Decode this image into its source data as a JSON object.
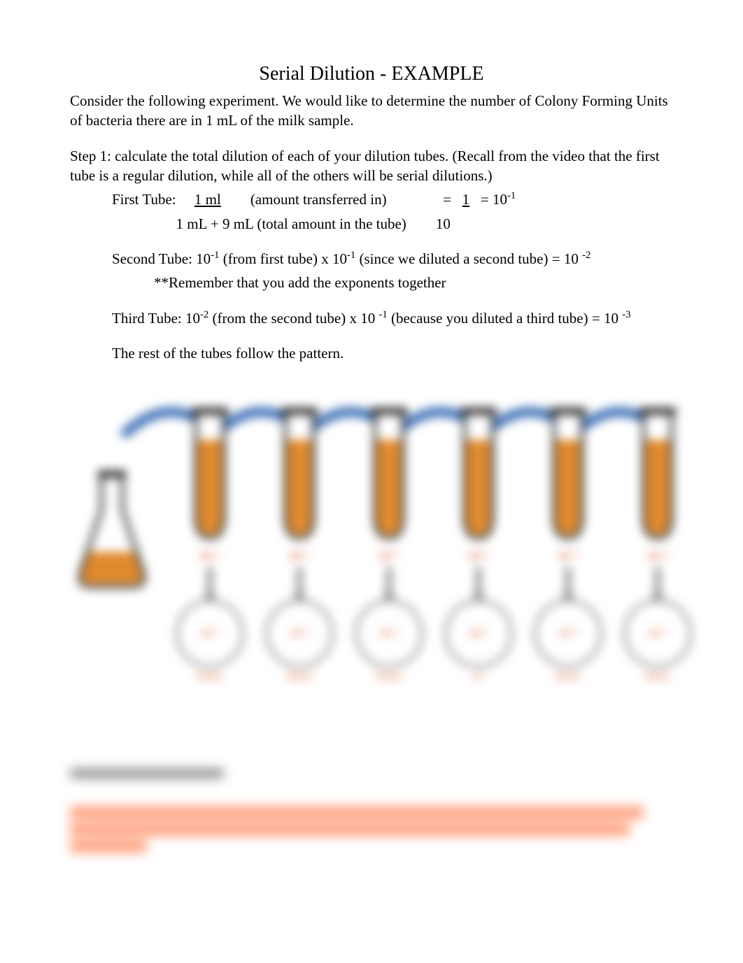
{
  "title": "Serial Dilution - EXAMPLE",
  "intro_p1": "Consider the following experiment. We would like to determine the number of Colony Forming Units of bacteria there are in 1 mL of the milk sample.",
  "step1_heading": "Step 1: calculate the total dilution of each of your dilution tubes. (Recall from the video that the first tube is a regular dilution, while all of the others will be serial dilutions.)",
  "first_tube": {
    "label": "First Tube:",
    "line1_left": "1 ml",
    "line1_mid": "(amount transferred in)",
    "line1_eq": "=   1   = 10",
    "line1_exp": "-1",
    "line2_left": "1 mL + 9 mL (total amount in the tube)",
    "line2_right": "10"
  },
  "second_tube": {
    "prefix": "Second Tube: 10",
    "exp1": "-1",
    "mid1": " (from first tube) x 10",
    "exp2": "-1",
    "mid2": " (since we diluted a second tube) = 10 ",
    "exp3": "-2",
    "note": "**Remember that you add the exponents together"
  },
  "third_tube": {
    "prefix": "Third Tube: 10",
    "exp1": "-2",
    "mid1": " (from the second tube) x 10 ",
    "exp2": "-1",
    "mid2": " (because you diluted a third tube) = 10 ",
    "exp3": "-3"
  },
  "rest_line": "The rest of the tubes follow the pattern.",
  "diagram": {
    "flask_fill": "#ffffff",
    "flask_stroke": "#222222",
    "tube_stroke": "#222222",
    "liquid_color": "#e08a2e",
    "label_color": "#d85c2e",
    "arc_color": "#3b6fb5",
    "tubes": [
      {
        "dilution": "10⁻¹",
        "plate_label": "10⁻¹",
        "count": "TNTC"
      },
      {
        "dilution": "10⁻²",
        "plate_label": "10⁻²",
        "count": "TNTC"
      },
      {
        "dilution": "10⁻³",
        "plate_label": "10⁻³",
        "count": "TNTC"
      },
      {
        "dilution": "10⁻⁴",
        "plate_label": "10⁻⁴",
        "count": "57"
      },
      {
        "dilution": "10⁻⁵",
        "plate_label": "10⁻⁵",
        "count": "TFTC"
      },
      {
        "dilution": "10⁻⁶",
        "plate_label": "10⁻⁶",
        "count": "TFTC"
      }
    ]
  },
  "blurred_footer": {
    "link_placeholder": "image source / reference link",
    "note_placeholder_1": "**Remember that a countable plate is one you can use to determine   30 and 300  colonies. Anything",
    "note_placeholder_2": "more than 300 is TNTC (Too Numerous To Count); anything below 30 is TFTC (Too Few To",
    "note_placeholder_3": "Count)."
  }
}
